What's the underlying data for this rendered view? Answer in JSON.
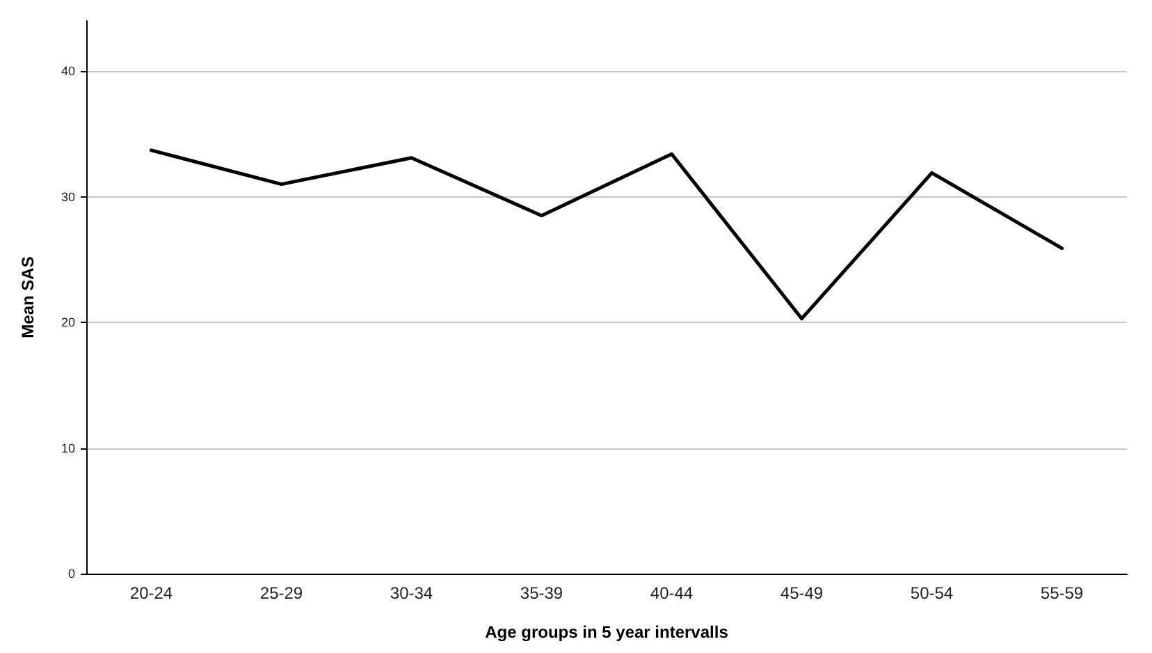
{
  "chart_data": {
    "type": "line",
    "xlabel": "Age groups in 5 year intervalls",
    "ylabel": "Mean SAS",
    "categories": [
      "20-24",
      "25-29",
      "30-34",
      "35-39",
      "40-44",
      "45-49",
      "50-54",
      "55-59"
    ],
    "series": [
      {
        "color": "#000000",
        "values": [
          33.7,
          31.0,
          33.1,
          28.5,
          33.4,
          20.3,
          31.9,
          25.9
        ]
      }
    ],
    "ylim": [
      0,
      44
    ],
    "yticks": [
      0,
      10,
      20,
      30,
      40
    ],
    "grid": "y",
    "marker": "none",
    "line_style": "solid"
  }
}
